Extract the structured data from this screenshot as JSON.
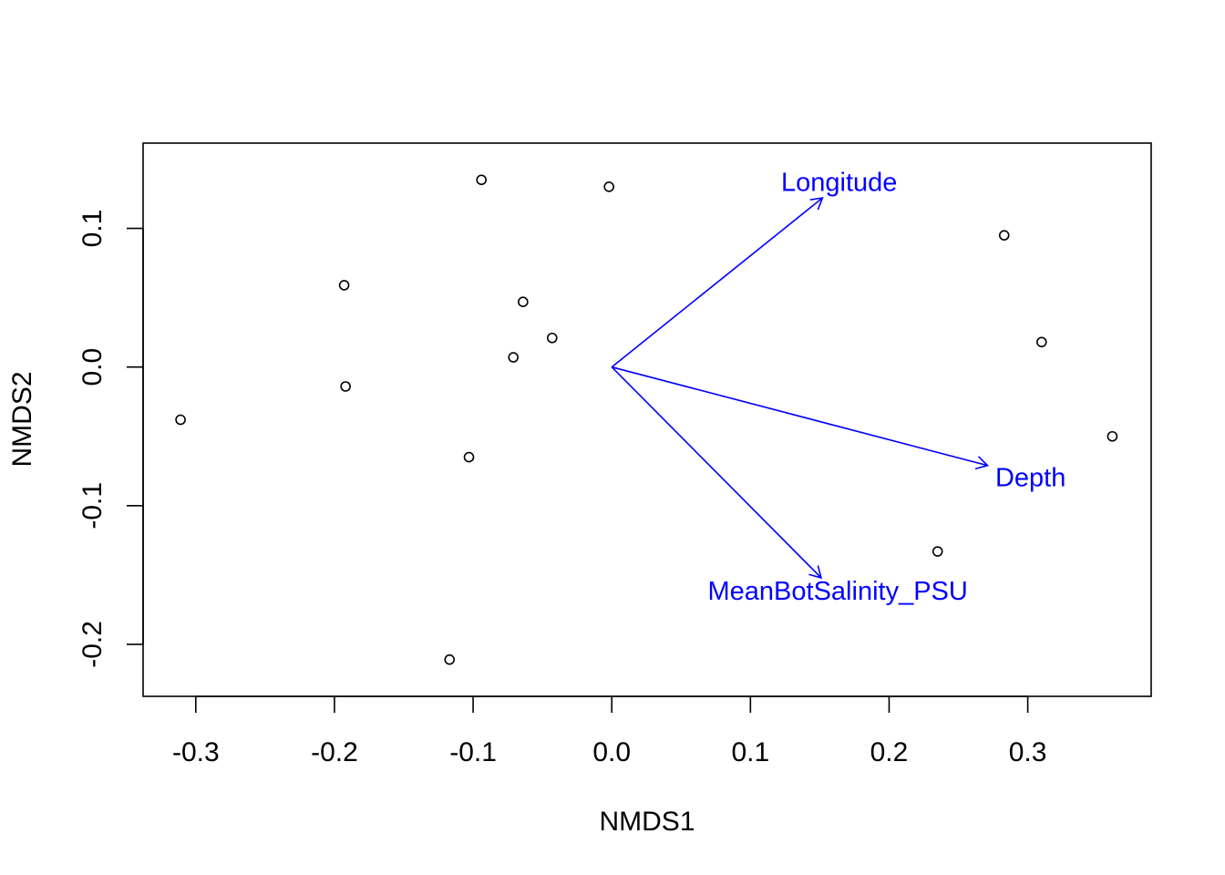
{
  "chart_data": {
    "type": "scatter",
    "title": "",
    "xlabel": "NMDS1",
    "ylabel": "NMDS2",
    "xlim": [
      -0.338,
      0.389
    ],
    "ylim": [
      -0.2375,
      0.1615
    ],
    "xticks": [
      -0.3,
      -0.2,
      -0.1,
      0.0,
      0.1,
      0.2,
      0.3
    ],
    "xtick_labels": [
      "-0.3",
      "-0.2",
      "-0.1",
      "0.0",
      "0.1",
      "0.2",
      "0.3"
    ],
    "yticks": [
      -0.2,
      -0.1,
      0.0,
      0.1
    ],
    "ytick_labels": [
      "-0.2",
      "-0.1",
      "0.0",
      "0.1"
    ],
    "grid": false,
    "legend": "none",
    "points": [
      {
        "x": -0.094,
        "y": 0.135
      },
      {
        "x": -0.002,
        "y": 0.13
      },
      {
        "x": -0.193,
        "y": 0.059
      },
      {
        "x": -0.064,
        "y": 0.047
      },
      {
        "x": -0.043,
        "y": 0.021
      },
      {
        "x": -0.071,
        "y": 0.007
      },
      {
        "x": -0.192,
        "y": -0.014
      },
      {
        "x": -0.311,
        "y": -0.038
      },
      {
        "x": -0.103,
        "y": -0.065
      },
      {
        "x": -0.117,
        "y": -0.211
      },
      {
        "x": 0.283,
        "y": 0.095
      },
      {
        "x": 0.31,
        "y": 0.018
      },
      {
        "x": 0.361,
        "y": -0.05
      },
      {
        "x": 0.235,
        "y": -0.133
      }
    ],
    "vectors": [
      {
        "label": "Longitude",
        "x": 0.152,
        "y": 0.122,
        "label_x": 0.164,
        "label_y": 0.133
      },
      {
        "label": "Depth",
        "x": 0.271,
        "y": -0.071,
        "label_x": 0.302,
        "label_y": -0.08
      },
      {
        "label": "MeanBotSalinity_PSU",
        "x": 0.151,
        "y": -0.152,
        "label_x": 0.163,
        "label_y": -0.162
      }
    ],
    "colors": {
      "points": "#000000",
      "vectors": "#0000ff",
      "axes": "#000000"
    }
  }
}
